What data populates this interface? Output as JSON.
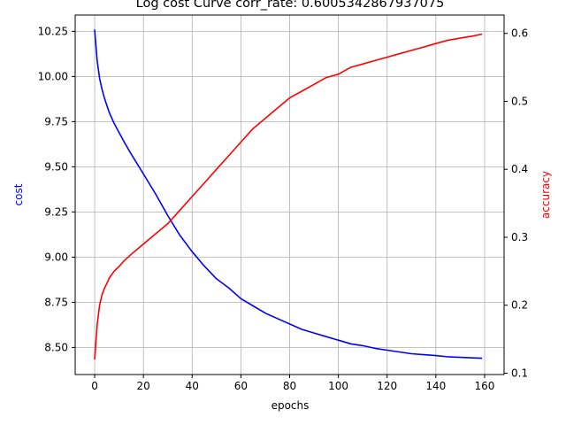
{
  "chart_data": {
    "type": "line",
    "title": "Log cost Curve corr_rate: 0.6005342867937075",
    "xlabel": "epochs",
    "ylabel_left": "cost",
    "ylabel_right": "accuracy",
    "xlim": [
      -8,
      168
    ],
    "ylim_left": [
      8.35,
      10.34
    ],
    "ylim_right": [
      0.098,
      0.627
    ],
    "xticks": [
      0,
      20,
      40,
      60,
      80,
      100,
      120,
      140,
      160
    ],
    "yticks_left": [
      8.5,
      8.75,
      9.0,
      9.25,
      9.5,
      9.75,
      10.0,
      10.25
    ],
    "yticks_right": [
      0.1,
      0.2,
      0.3,
      0.4,
      0.5,
      0.6
    ],
    "grid": true,
    "colors": {
      "cost": "#0000ff",
      "accuracy": "#ff0000",
      "grid": "#b0b0b0"
    },
    "series": [
      {
        "axis": "left",
        "color": "#0000ff",
        "x": [
          0,
          1,
          2,
          3,
          4,
          5,
          6,
          8,
          10,
          12,
          15,
          20,
          25,
          30,
          35,
          40,
          45,
          50,
          55,
          60,
          65,
          70,
          75,
          80,
          85,
          90,
          95,
          100,
          105,
          110,
          115,
          120,
          125,
          130,
          135,
          140,
          145,
          150,
          155,
          159
        ],
        "y": [
          10.26,
          10.09,
          9.99,
          9.93,
          9.88,
          9.84,
          9.8,
          9.74,
          9.69,
          9.64,
          9.57,
          9.46,
          9.35,
          9.23,
          9.12,
          9.03,
          8.95,
          8.88,
          8.83,
          8.77,
          8.73,
          8.69,
          8.66,
          8.63,
          8.6,
          8.58,
          8.56,
          8.54,
          8.52,
          8.51,
          8.495,
          8.485,
          8.475,
          8.465,
          8.46,
          8.455,
          8.448,
          8.445,
          8.442,
          8.44
        ]
      },
      {
        "axis": "right",
        "color": "#ff0000",
        "x": [
          0,
          1,
          2,
          3,
          4,
          5,
          6,
          8,
          10,
          12,
          15,
          20,
          25,
          30,
          35,
          40,
          45,
          50,
          55,
          60,
          65,
          70,
          75,
          80,
          85,
          90,
          95,
          100,
          105,
          110,
          115,
          120,
          125,
          130,
          135,
          140,
          145,
          150,
          155,
          159
        ],
        "y": [
          0.12,
          0.17,
          0.2,
          0.215,
          0.225,
          0.232,
          0.24,
          0.25,
          0.257,
          0.265,
          0.275,
          0.29,
          0.305,
          0.32,
          0.34,
          0.36,
          0.38,
          0.4,
          0.42,
          0.44,
          0.46,
          0.475,
          0.49,
          0.505,
          0.515,
          0.525,
          0.535,
          0.54,
          0.55,
          0.555,
          0.56,
          0.565,
          0.57,
          0.575,
          0.58,
          0.585,
          0.59,
          0.593,
          0.596,
          0.599
        ]
      }
    ]
  }
}
